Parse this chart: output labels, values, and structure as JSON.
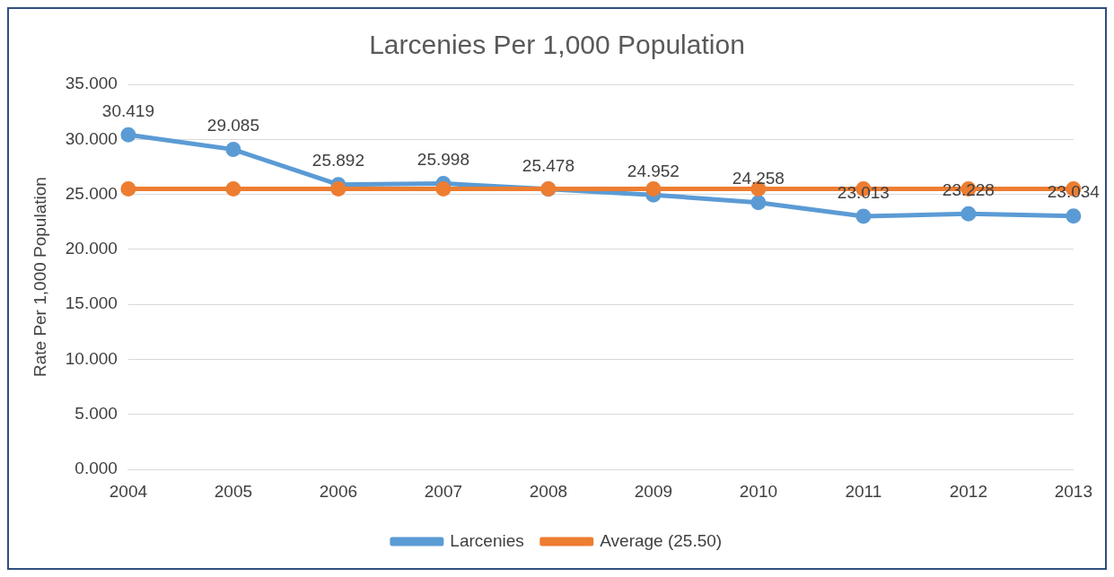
{
  "chart_data": {
    "type": "line",
    "title": "Larcenies Per 1,000 Population",
    "ylabel": "Rate Per 1,000 Population",
    "categories": [
      "2004",
      "2005",
      "2006",
      "2007",
      "2008",
      "2009",
      "2010",
      "2011",
      "2012",
      "2013"
    ],
    "series": [
      {
        "name": "Larcenies",
        "color": "#5b9bd5",
        "values": [
          30.419,
          29.085,
          25.892,
          25.998,
          25.478,
          24.952,
          24.258,
          23.013,
          23.228,
          23.034
        ],
        "value_labels": [
          "30.419",
          "29.085",
          "25.892",
          "25.998",
          "25.478",
          "24.952",
          "24.258",
          "23.013",
          "23.228",
          "23.034"
        ]
      },
      {
        "name": "Average (25.50)",
        "color": "#ed7d31",
        "values": [
          25.5,
          25.5,
          25.5,
          25.5,
          25.5,
          25.5,
          25.5,
          25.5,
          25.5,
          25.5
        ]
      }
    ],
    "ylim": [
      0,
      35
    ],
    "yticks": [
      {
        "value": 0,
        "label": "0.000"
      },
      {
        "value": 5,
        "label": "5.000"
      },
      {
        "value": 10,
        "label": "10.000"
      },
      {
        "value": 15,
        "label": "15.000"
      },
      {
        "value": 20,
        "label": "20.000"
      },
      {
        "value": 25,
        "label": "25.000"
      },
      {
        "value": 30,
        "label": "30.000"
      },
      {
        "value": 35,
        "label": "35.000"
      }
    ],
    "grid": "y",
    "legend": "bottom",
    "marker": "circle",
    "line_style": "solid"
  }
}
